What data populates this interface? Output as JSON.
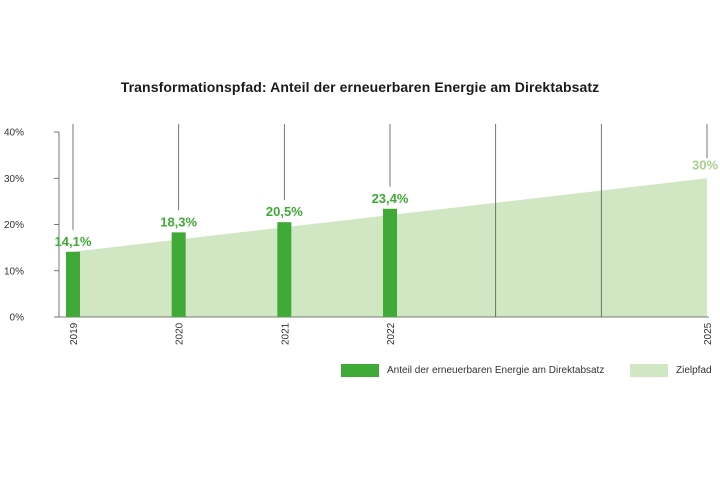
{
  "chart_data": {
    "type": "bar",
    "title": "Transformationspfad: Anteil der erneuerbaren Energie am Direktabsatz",
    "categories": [
      "2019",
      "2020",
      "2021",
      "2022",
      "",
      "",
      "2025"
    ],
    "series": [
      {
        "name": "Anteil der erneuerbaren Energie am Direktabsatz",
        "type": "bar",
        "values": [
          14.1,
          18.3,
          20.5,
          23.4,
          null,
          null,
          null
        ],
        "labels": [
          "14,1%",
          "18,3%",
          "20,5%",
          "23,4%",
          null,
          null,
          null
        ],
        "color": "#3faa35"
      },
      {
        "name": "Zielpfad",
        "type": "area",
        "start": 14.1,
        "end": 30,
        "end_label": "30%",
        "color": "#d1e7c4",
        "label_color": "#a8d08d"
      }
    ],
    "yticks": [
      "0%",
      "10%",
      "20%",
      "30%",
      "40%"
    ],
    "ylim": [
      0,
      40
    ],
    "xlabel": "",
    "ylabel": "",
    "legend_position": "bottom-right"
  }
}
